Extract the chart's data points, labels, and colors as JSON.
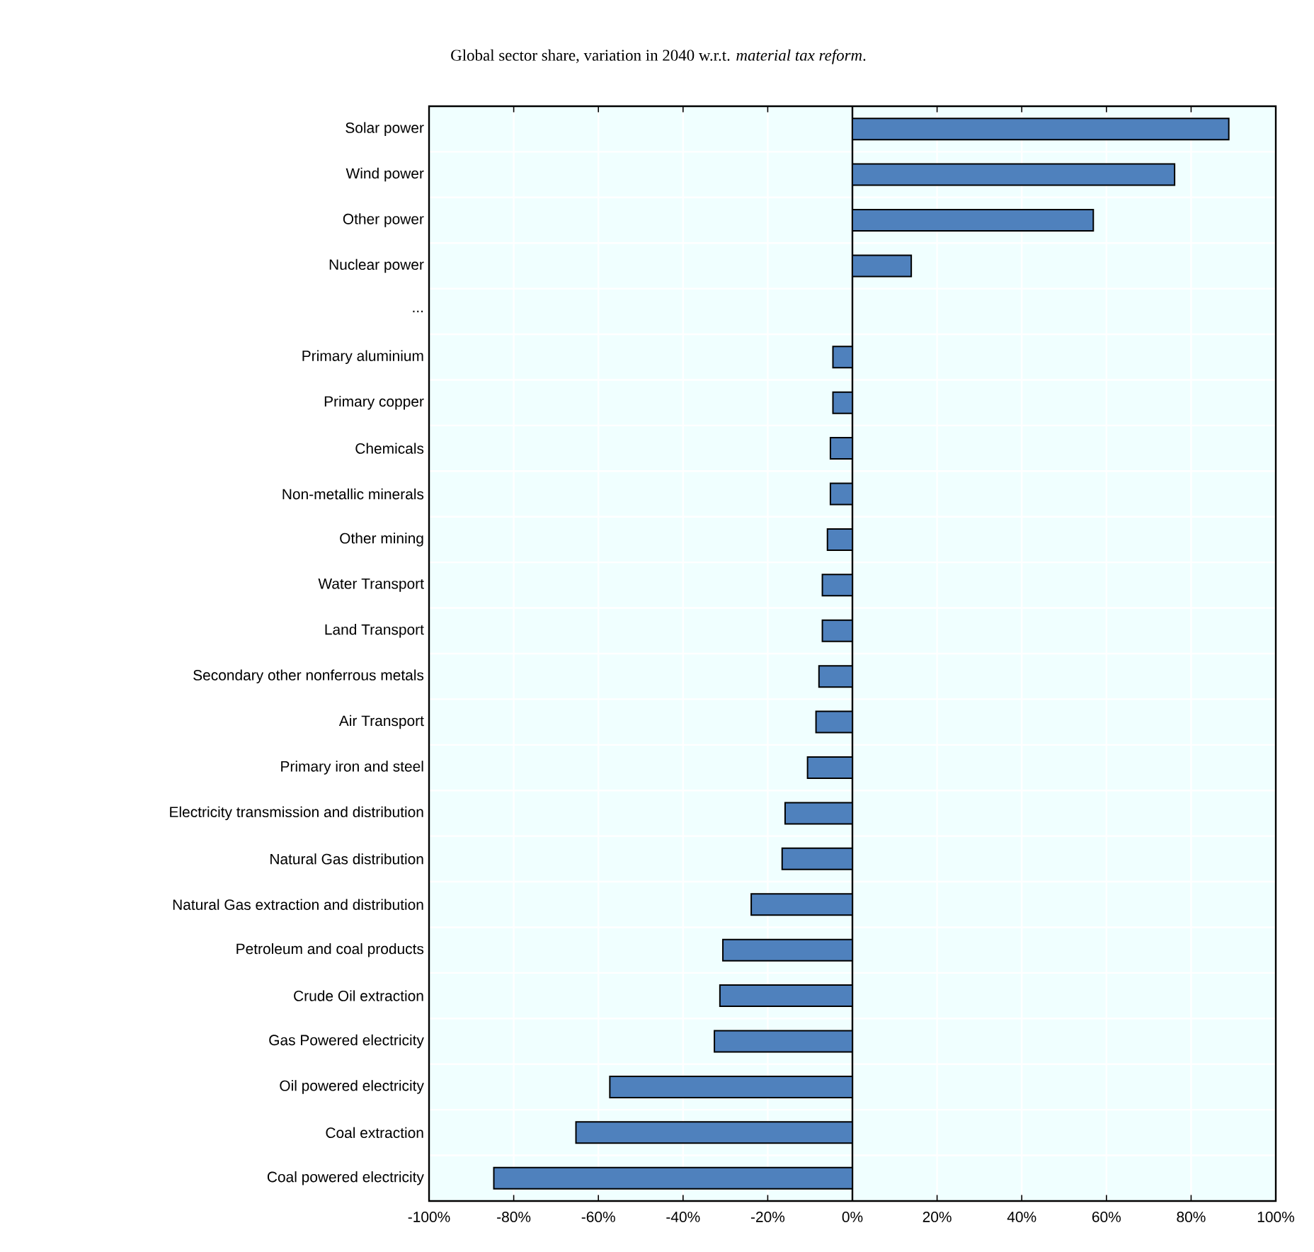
{
  "chart_data": {
    "type": "bar",
    "orientation": "horizontal",
    "title": "Global sector share, variation in 2040 w.r.t. *material tax reform*.",
    "categories": [
      "Solar power",
      "Wind power",
      "Other power",
      "Nuclear power",
      "...",
      "Primary aluminium",
      "Primary copper",
      "Chemicals",
      "Non-metallic minerals",
      "Other mining",
      "Water Transport",
      "Land Transport",
      "Secondary other nonferrous metals",
      "Air Transport",
      "Primary iron and steel",
      "Electricity transmission and distribution",
      "Natural Gas distribution",
      "Natural Gas extraction and distribution",
      "Petroleum and coal products",
      "Crude Oil extraction",
      "Gas Powered electricity",
      "Oil powered electricity",
      "Coal extraction",
      "Coal powered electricity"
    ],
    "values": [
      88.9,
      76.1,
      56.9,
      13.9,
      null,
      -4.6,
      -4.6,
      -5.2,
      -5.2,
      -5.9,
      -7.1,
      -7.1,
      -7.9,
      -8.6,
      -10.6,
      -15.9,
      -16.6,
      -23.9,
      -30.6,
      -31.3,
      -32.6,
      -57.3,
      -65.3,
      -84.7
    ],
    "color": "#4f81bd",
    "xlim": [
      -100,
      100
    ],
    "xticks": [
      {
        "value": -100,
        "label": "-100%"
      },
      {
        "value": -80,
        "label": "-80%"
      },
      {
        "value": -60,
        "label": "-60%"
      },
      {
        "value": -40,
        "label": "-40%"
      },
      {
        "value": -20,
        "label": "-20%"
      },
      {
        "value": 0,
        "label": "0%"
      },
      {
        "value": 20,
        "label": "20%"
      },
      {
        "value": 40,
        "label": "40%"
      },
      {
        "value": 60,
        "label": "60%"
      },
      {
        "value": 80,
        "label": "80%"
      },
      {
        "value": 100,
        "label": "100%"
      }
    ],
    "grid": true
  }
}
